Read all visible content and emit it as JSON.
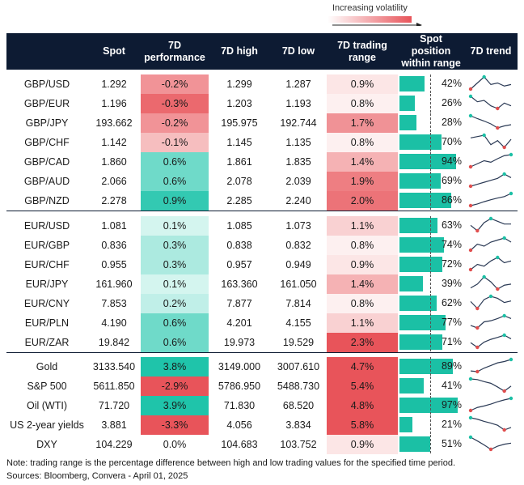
{
  "legend": {
    "label": "Increasing volatility"
  },
  "headers": [
    "",
    "Spot",
    "7D\nperformance",
    "7D high",
    "7D low",
    "7D trading\nrange",
    "Spot position\nwithin range",
    "7D trend"
  ],
  "colors": {
    "header_bg": "#0d1b33",
    "pos_bar": "#1bc0a5",
    "trend_line": "#2b3a55",
    "trend_max": "#1bc0a5",
    "trend_min": "#e04d4d"
  },
  "chart_data": {
    "type": "table",
    "groups": [
      [
        {
          "name": "GBP/USD",
          "spot": "1.292",
          "perf": "-0.2%",
          "perf_v": -0.2,
          "high": "1.299",
          "low": "1.287",
          "range": "0.9%",
          "range_v": 0.9,
          "pos": "42%",
          "pos_v": 42,
          "trend": [
            1.289,
            1.293,
            1.297,
            1.292,
            1.293,
            1.291,
            1.292
          ]
        },
        {
          "name": "GBP/EUR",
          "spot": "1.196",
          "perf": "-0.3%",
          "perf_v": -0.3,
          "high": "1.203",
          "low": "1.193",
          "range": "0.8%",
          "range_v": 0.8,
          "pos": "26%",
          "pos_v": 26,
          "trend": [
            1.203,
            1.199,
            1.2,
            1.196,
            1.194,
            1.198,
            1.196
          ]
        },
        {
          "name": "GBP/JPY",
          "spot": "193.662",
          "perf": "-0.2%",
          "perf_v": -0.2,
          "high": "195.975",
          "low": "192.744",
          "range": "1.7%",
          "range_v": 1.7,
          "pos": "28%",
          "pos_v": 28,
          "trend": [
            195.9,
            195.2,
            194.6,
            193.9,
            192.9,
            193.4,
            193.7
          ]
        },
        {
          "name": "GBP/CHF",
          "spot": "1.142",
          "perf": "-0.1%",
          "perf_v": -0.1,
          "high": "1.145",
          "low": "1.135",
          "range": "0.8%",
          "range_v": 0.8,
          "pos": "70%",
          "pos_v": 70,
          "trend": [
            1.143,
            1.144,
            1.145,
            1.138,
            1.141,
            1.136,
            1.142
          ]
        },
        {
          "name": "GBP/CAD",
          "spot": "1.860",
          "perf": "0.6%",
          "perf_v": 0.6,
          "high": "1.861",
          "low": "1.835",
          "range": "1.4%",
          "range_v": 1.4,
          "pos": "94%",
          "pos_v": 94,
          "trend": [
            1.836,
            1.842,
            1.848,
            1.845,
            1.852,
            1.858,
            1.86
          ]
        },
        {
          "name": "GBP/AUD",
          "spot": "2.066",
          "perf": "0.6%",
          "perf_v": 0.6,
          "high": "2.078",
          "low": "2.039",
          "range": "1.9%",
          "range_v": 1.9,
          "pos": "69%",
          "pos_v": 69,
          "trend": [
            2.04,
            2.046,
            2.052,
            2.058,
            2.064,
            2.077,
            2.066
          ]
        },
        {
          "name": "GBP/NZD",
          "spot": "2.278",
          "perf": "0.9%",
          "perf_v": 0.9,
          "high": "2.285",
          "low": "2.240",
          "range": "2.0%",
          "range_v": 2.0,
          "pos": "86%",
          "pos_v": 86,
          "trend": [
            2.241,
            2.247,
            2.255,
            2.262,
            2.268,
            2.273,
            2.284
          ]
        }
      ],
      [
        {
          "name": "EUR/USD",
          "spot": "1.081",
          "perf": "0.1%",
          "perf_v": 0.1,
          "high": "1.085",
          "low": "1.073",
          "range": "1.1%",
          "range_v": 1.1,
          "pos": "63%",
          "pos_v": 63,
          "trend": [
            1.08,
            1.076,
            1.082,
            1.085,
            1.083,
            1.081,
            1.081
          ]
        },
        {
          "name": "EUR/GBP",
          "spot": "0.836",
          "perf": "0.3%",
          "perf_v": 0.3,
          "high": "0.838",
          "low": "0.832",
          "range": "0.8%",
          "range_v": 0.8,
          "pos": "74%",
          "pos_v": 74,
          "trend": [
            0.832,
            0.835,
            0.834,
            0.836,
            0.837,
            0.838,
            0.836
          ]
        },
        {
          "name": "EUR/CHF",
          "spot": "0.955",
          "perf": "0.3%",
          "perf_v": 0.3,
          "high": "0.957",
          "low": "0.949",
          "range": "0.9%",
          "range_v": 0.9,
          "pos": "72%",
          "pos_v": 72,
          "trend": [
            0.95,
            0.953,
            0.952,
            0.955,
            0.957,
            0.954,
            0.955
          ]
        },
        {
          "name": "EUR/JPY",
          "spot": "161.960",
          "perf": "0.1%",
          "perf_v": 0.1,
          "high": "163.360",
          "low": "161.050",
          "range": "1.4%",
          "range_v": 1.4,
          "pos": "39%",
          "pos_v": 39,
          "trend": [
            161.3,
            162.0,
            163.3,
            162.4,
            161.1,
            161.8,
            162.0
          ]
        },
        {
          "name": "EUR/CNY",
          "spot": "7.853",
          "perf": "0.2%",
          "perf_v": 0.2,
          "high": "7.877",
          "low": "7.814",
          "range": "0.8%",
          "range_v": 0.8,
          "pos": "62%",
          "pos_v": 62,
          "trend": [
            7.85,
            7.815,
            7.86,
            7.876,
            7.866,
            7.845,
            7.853
          ]
        },
        {
          "name": "EUR/PLN",
          "spot": "4.190",
          "perf": "0.6%",
          "perf_v": 0.6,
          "high": "4.201",
          "low": "4.155",
          "range": "1.1%",
          "range_v": 1.1,
          "pos": "77%",
          "pos_v": 77,
          "trend": [
            4.165,
            4.156,
            4.178,
            4.182,
            4.19,
            4.2,
            4.19
          ]
        },
        {
          "name": "EUR/ZAR",
          "spot": "19.842",
          "perf": "0.6%",
          "perf_v": 0.6,
          "high": "19.973",
          "low": "19.529",
          "range": "2.3%",
          "range_v": 2.3,
          "pos": "71%",
          "pos_v": 71,
          "trend": [
            19.7,
            19.53,
            19.72,
            19.82,
            19.89,
            19.97,
            19.84
          ]
        }
      ],
      [
        {
          "name": "Gold",
          "spot": "3133.540",
          "perf": "3.8%",
          "perf_v": 3.8,
          "high": "3149.000",
          "low": "3007.610",
          "range": "4.7%",
          "range_v": 4.7,
          "pos": "89%",
          "pos_v": 89,
          "trend": [
            3018,
            3010,
            3050,
            3080,
            3110,
            3125,
            3148
          ]
        },
        {
          "name": "S&P 500",
          "spot": "5611.850",
          "perf": "-2.9%",
          "perf_v": -2.9,
          "high": "5786.950",
          "low": "5488.730",
          "range": "5.4%",
          "range_v": 5.4,
          "pos": "41%",
          "pos_v": 41,
          "trend": [
            5786,
            5770,
            5720,
            5680,
            5590,
            5490,
            5611
          ]
        },
        {
          "name": "Oil (WTI)",
          "spot": "71.720",
          "perf": "3.9%",
          "perf_v": 3.9,
          "high": "71.830",
          "low": "68.520",
          "range": "4.8%",
          "range_v": 4.8,
          "pos": "97%",
          "pos_v": 97,
          "trend": [
            68.6,
            69.4,
            69.8,
            70.3,
            70.9,
            71.4,
            71.8
          ]
        },
        {
          "name": "US 2-year yields",
          "spot": "3.881",
          "perf": "-3.3%",
          "perf_v": -3.3,
          "high": "4.056",
          "low": "3.834",
          "range": "5.8%",
          "range_v": 5.8,
          "pos": "21%",
          "pos_v": 21,
          "trend": [
            4.056,
            4.03,
            3.99,
            3.96,
            3.92,
            3.835,
            3.881
          ]
        },
        {
          "name": "DXY",
          "spot": "104.229",
          "perf": "0.0%",
          "perf_v": 0.0,
          "high": "104.683",
          "low": "103.752",
          "range": "0.9%",
          "range_v": 0.9,
          "pos": "51%",
          "pos_v": 51,
          "trend": [
            104.68,
            104.4,
            104.1,
            103.76,
            104.0,
            104.15,
            104.23
          ]
        }
      ]
    ]
  },
  "notes": {
    "note": "Note: trading range is the percentage difference between high and low trading values for the specified time period.",
    "sources": "Sources: Bloomberg, Convera - April 01, 2025"
  }
}
